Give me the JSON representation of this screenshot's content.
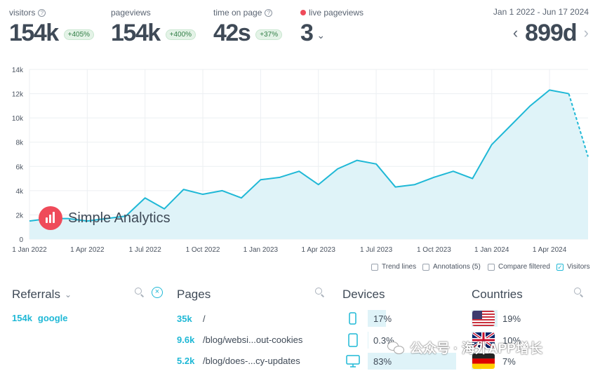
{
  "stats": {
    "visitors": {
      "label": "visitors",
      "value": "154k",
      "change": "+405%"
    },
    "pageviews": {
      "label": "pageviews",
      "value": "154k",
      "change": "+400%"
    },
    "time_on_page": {
      "label": "time on page",
      "value": "42s",
      "change": "+37%"
    },
    "live": {
      "label": "live pageviews",
      "value": "3"
    }
  },
  "date_range": {
    "label": "Jan 1 2022 - Jun 17 2024",
    "period": "899d"
  },
  "chart_data": {
    "type": "area",
    "x": [
      "2022-01",
      "2022-02",
      "2022-03",
      "2022-04",
      "2022-05",
      "2022-06",
      "2022-07",
      "2022-08",
      "2022-09",
      "2022-10",
      "2022-11",
      "2022-12",
      "2023-01",
      "2023-02",
      "2023-03",
      "2023-04",
      "2023-05",
      "2023-06",
      "2023-07",
      "2023-08",
      "2023-09",
      "2023-10",
      "2023-11",
      "2023-12",
      "2024-01",
      "2024-02",
      "2024-03",
      "2024-04",
      "2024-05",
      "2024-06"
    ],
    "series": [
      {
        "name": "Visitors",
        "values": [
          1500,
          1700,
          1700,
          1500,
          1700,
          1900,
          3400,
          2500,
          4100,
          3700,
          4000,
          3400,
          4900,
          5100,
          5600,
          4500,
          5800,
          6500,
          6200,
          4300,
          4500,
          5100,
          5600,
          5000,
          7800,
          9400,
          11000,
          12300,
          12000,
          6800
        ]
      }
    ],
    "projected_from_index": 28,
    "ylim": [
      0,
      14000
    ],
    "y_ticks": [
      0,
      2000,
      4000,
      6000,
      8000,
      10000,
      12000,
      14000
    ],
    "y_tick_labels": [
      "0",
      "2k",
      "4k",
      "6k",
      "8k",
      "10k",
      "12k",
      "14k"
    ],
    "x_tick_labels": [
      "1 Jan 2022",
      "1 Apr 2022",
      "1 Jul 2022",
      "1 Oct 2022",
      "1 Jan 2023",
      "1 Apr 2023",
      "1 Jul 2023",
      "1 Oct 2023",
      "1 Jan 2024",
      "1 Apr 2024"
    ],
    "x_tick_index": [
      0,
      3,
      6,
      9,
      12,
      15,
      18,
      21,
      24,
      27
    ],
    "line_color": "#1fb8d6",
    "fill_color": "#dff3f8",
    "grid": true
  },
  "legend": {
    "trend_lines": "Trend lines",
    "annotations": "Annotations (5)",
    "compare_filtered": "Compare filtered",
    "visitors": "Visitors"
  },
  "brand": {
    "name": "Simple Analytics",
    "color": "#ef4b5a"
  },
  "referrals": {
    "title": "Referrals",
    "rows": [
      {
        "count": "154k",
        "name": "google"
      }
    ]
  },
  "pages": {
    "title": "Pages",
    "rows": [
      {
        "count": "35k",
        "path": "/"
      },
      {
        "count": "9.6k",
        "path": "/blog/websi...out-cookies"
      },
      {
        "count": "5.2k",
        "path": "/blog/does-...cy-updates"
      }
    ]
  },
  "devices": {
    "title": "Devices",
    "rows": [
      {
        "icon": "phone-icon",
        "value": "17%",
        "share": 17
      },
      {
        "icon": "tablet-icon",
        "value": "0.3%",
        "share": 0.3
      },
      {
        "icon": "desktop-icon",
        "value": "83%",
        "share": 83
      }
    ]
  },
  "countries": {
    "title": "Countries",
    "rows": [
      {
        "icon": "us-flag-icon",
        "value": "19%",
        "share": 19
      },
      {
        "icon": "uk-flag-icon",
        "value": "10%",
        "share": 10
      },
      {
        "icon": "de-flag-icon",
        "value": "7%",
        "share": 7
      }
    ]
  },
  "watermark": {
    "text": "公众号 · 海外APP增长"
  },
  "colors": {
    "accent": "#1fb8d6",
    "badge_bg": "#e4f3e7",
    "live": "#ef4b5a"
  }
}
